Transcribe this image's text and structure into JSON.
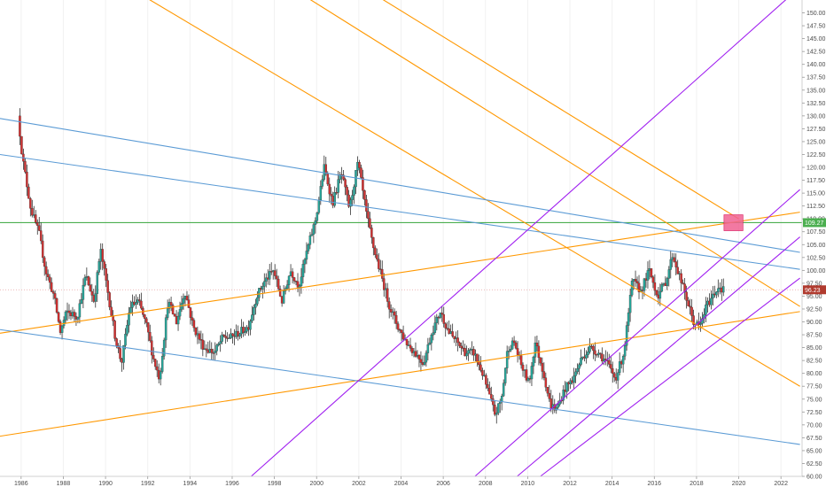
{
  "chart_data": {
    "type": "candlestick",
    "xlim": [
      1985.0,
      2023.0
    ],
    "ylim": [
      60.0,
      152.5
    ],
    "x_ticks": [
      "1986",
      "1988",
      "1990",
      "1992",
      "1994",
      "1996",
      "1998",
      "2000",
      "2002",
      "2004",
      "2006",
      "2008",
      "2010",
      "2012",
      "2014",
      "2016",
      "2018",
      "2020",
      "2022"
    ],
    "y_ticks": [
      "60.00",
      "62.50",
      "65.00",
      "67.50",
      "70.00",
      "72.50",
      "75.00",
      "77.50",
      "80.00",
      "82.50",
      "85.00",
      "87.50",
      "90.00",
      "92.50",
      "95.00",
      "97.50",
      "100.00",
      "102.50",
      "105.00",
      "107.50",
      "110.00",
      "112.50",
      "115.00",
      "117.50",
      "120.00",
      "122.50",
      "125.00",
      "127.50",
      "130.00",
      "132.50",
      "135.00",
      "137.50",
      "140.00",
      "142.50",
      "145.00",
      "147.50",
      "150.00"
    ],
    "price_labels": [
      {
        "text": "109.27",
        "value": 109.27,
        "color": "#4caf50"
      },
      {
        "text": "96.23",
        "value": 96.23,
        "color": "#b03a2e"
      }
    ],
    "current_price": 96.23,
    "horizontal_level": 109.27,
    "colors": {
      "up": "#26a69a",
      "down": "#d32f2f",
      "body_neutral": "#333333",
      "orange": "#ff9800",
      "blue": "#5b9bd5",
      "purple": "#a020f0",
      "green": "#4caf50",
      "highlight": "#f06292"
    },
    "keypoints": [
      [
        1985.9,
        130
      ],
      [
        1986.1,
        122
      ],
      [
        1986.5,
        112
      ],
      [
        1986.9,
        107
      ],
      [
        1987.2,
        100
      ],
      [
        1987.6,
        95
      ],
      [
        1987.9,
        88
      ],
      [
        1988.2,
        92
      ],
      [
        1988.7,
        91
      ],
      [
        1989.1,
        99
      ],
      [
        1989.5,
        94
      ],
      [
        1989.8,
        104
      ],
      [
        1990.1,
        97
      ],
      [
        1990.5,
        87
      ],
      [
        1990.8,
        82
      ],
      [
        1991.2,
        93
      ],
      [
        1991.6,
        94
      ],
      [
        1992.0,
        89
      ],
      [
        1992.3,
        83
      ],
      [
        1992.6,
        79
      ],
      [
        1993.0,
        94
      ],
      [
        1993.4,
        90
      ],
      [
        1993.8,
        96
      ],
      [
        1994.2,
        89
      ],
      [
        1994.7,
        85
      ],
      [
        1995.2,
        84
      ],
      [
        1995.6,
        87
      ],
      [
        1996.0,
        87
      ],
      [
        1996.4,
        88
      ],
      [
        1996.8,
        89
      ],
      [
        1997.2,
        95
      ],
      [
        1997.6,
        98
      ],
      [
        1998.0,
        100
      ],
      [
        1998.4,
        94
      ],
      [
        1998.8,
        100
      ],
      [
        1999.2,
        97
      ],
      [
        1999.6,
        104
      ],
      [
        2000.0,
        110
      ],
      [
        2000.4,
        120
      ],
      [
        2000.8,
        113
      ],
      [
        2001.2,
        119
      ],
      [
        2001.6,
        112
      ],
      [
        2002.0,
        121
      ],
      [
        2002.4,
        111
      ],
      [
        2002.7,
        105
      ],
      [
        2003.1,
        99
      ],
      [
        2003.5,
        93
      ],
      [
        2003.9,
        89
      ],
      [
        2004.3,
        86
      ],
      [
        2004.7,
        84
      ],
      [
        2005.1,
        82
      ],
      [
        2005.5,
        88
      ],
      [
        2005.9,
        92
      ],
      [
        2006.3,
        88
      ],
      [
        2006.7,
        86
      ],
      [
        2007.1,
        84
      ],
      [
        2007.5,
        84
      ],
      [
        2007.9,
        80
      ],
      [
        2008.2,
        76
      ],
      [
        2008.5,
        72
      ],
      [
        2008.8,
        75
      ],
      [
        2009.1,
        85
      ],
      [
        2009.4,
        86
      ],
      [
        2009.7,
        82
      ],
      [
        2010.1,
        78
      ],
      [
        2010.4,
        86
      ],
      [
        2010.8,
        80
      ],
      [
        2011.1,
        74
      ],
      [
        2011.4,
        73
      ],
      [
        2011.8,
        77
      ],
      [
        2012.2,
        79
      ],
      [
        2012.6,
        83
      ],
      [
        2013.0,
        85
      ],
      [
        2013.4,
        84
      ],
      [
        2013.8,
        82
      ],
      [
        2014.2,
        79
      ],
      [
        2014.6,
        84
      ],
      [
        2015.0,
        98
      ],
      [
        2015.4,
        96
      ],
      [
        2015.8,
        100
      ],
      [
        2016.2,
        95
      ],
      [
        2016.6,
        98
      ],
      [
        2016.9,
        103
      ],
      [
        2017.3,
        98
      ],
      [
        2017.6,
        94
      ],
      [
        2017.9,
        90
      ],
      [
        2018.2,
        89
      ],
      [
        2018.5,
        93
      ],
      [
        2018.8,
        95
      ],
      [
        2019.1,
        97
      ],
      [
        2019.3,
        96.2
      ]
    ],
    "trendlines": [
      {
        "color": "orange",
        "points": [
          [
            1987.8,
            163
          ],
          [
            2022.9,
            77.5
          ]
        ]
      },
      {
        "color": "orange",
        "points": [
          [
            1997.2,
            159
          ],
          [
            2022.9,
            93
          ]
        ]
      },
      {
        "color": "orange",
        "points": [
          [
            2000.6,
            159
          ],
          [
            2020.0,
            110
          ]
        ]
      },
      {
        "color": "orange",
        "points": [
          [
            1985.0,
            87.8
          ],
          [
            2022.9,
            111.3
          ]
        ]
      },
      {
        "color": "orange",
        "points": [
          [
            1985.0,
            67.8
          ],
          [
            2022.9,
            92.0
          ]
        ]
      },
      {
        "color": "blue",
        "points": [
          [
            1985.0,
            129.5
          ],
          [
            2022.9,
            103.5
          ]
        ]
      },
      {
        "color": "blue",
        "points": [
          [
            1985.0,
            122.5
          ],
          [
            2022.9,
            100.2
          ]
        ]
      },
      {
        "color": "blue",
        "points": [
          [
            1985.0,
            88.5
          ],
          [
            2022.9,
            66.2
          ]
        ]
      },
      {
        "color": "purple",
        "points": [
          [
            2007.5,
            60.0
          ],
          [
            2022.9,
            115.7
          ]
        ]
      },
      {
        "color": "purple",
        "points": [
          [
            2009.5,
            60.0
          ],
          [
            2022.9,
            106.5
          ]
        ]
      },
      {
        "color": "purple",
        "points": [
          [
            2010.6,
            60.0
          ],
          [
            2022.9,
            98.5
          ]
        ]
      },
      {
        "color": "purple",
        "points": [
          [
            1996.9,
            60.0
          ],
          [
            2022.9,
            155.0
          ]
        ]
      }
    ],
    "highlight_box": {
      "x": [
        2019.3,
        2020.2
      ],
      "y": [
        107.7,
        110.8
      ]
    }
  }
}
